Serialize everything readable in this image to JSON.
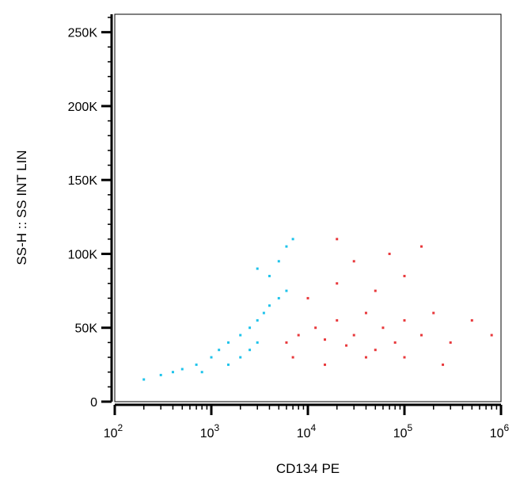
{
  "chart_data": {
    "type": "scatter",
    "title": "",
    "xlabel": "CD134 PE",
    "ylabel": "SS-H :: SS INT LIN",
    "x_scale": "log",
    "xlim": [
      100,
      1000000
    ],
    "ylim": [
      0,
      262144
    ],
    "x_ticks": [
      {
        "value": 100,
        "base": "10",
        "exp": "2"
      },
      {
        "value": 1000,
        "base": "10",
        "exp": "3"
      },
      {
        "value": 10000,
        "base": "10",
        "exp": "4"
      },
      {
        "value": 100000,
        "base": "10",
        "exp": "5"
      },
      {
        "value": 1000000,
        "base": "10",
        "exp": "6"
      }
    ],
    "y_ticks": [
      {
        "value": 0,
        "label": "0"
      },
      {
        "value": 50000,
        "label": "50K"
      },
      {
        "value": 100000,
        "label": "100K"
      },
      {
        "value": 150000,
        "label": "150K"
      },
      {
        "value": 200000,
        "label": "200K"
      },
      {
        "value": 250000,
        "label": "250K"
      }
    ],
    "grid": false,
    "legend": "none",
    "series": [
      {
        "color": "#e8383b",
        "points": [
          [
            6000,
            40000
          ],
          [
            8000,
            45000
          ],
          [
            12000,
            50000
          ],
          [
            15000,
            42000
          ],
          [
            20000,
            55000
          ],
          [
            25000,
            38000
          ],
          [
            30000,
            45000
          ],
          [
            40000,
            60000
          ],
          [
            50000,
            35000
          ],
          [
            60000,
            50000
          ],
          [
            80000,
            40000
          ],
          [
            100000,
            55000
          ],
          [
            150000,
            45000
          ],
          [
            200000,
            60000
          ],
          [
            300000,
            40000
          ],
          [
            10000,
            70000
          ],
          [
            20000,
            80000
          ],
          [
            50000,
            75000
          ],
          [
            100000,
            85000
          ],
          [
            7000,
            30000
          ],
          [
            15000,
            25000
          ],
          [
            40000,
            30000
          ],
          [
            100000,
            30000
          ],
          [
            250000,
            25000
          ],
          [
            500000,
            55000
          ],
          [
            800000,
            45000
          ],
          [
            30000,
            95000
          ],
          [
            70000,
            100000
          ],
          [
            150000,
            105000
          ],
          [
            20000,
            110000
          ]
        ]
      },
      {
        "color": "#1ec3eb",
        "points": [
          [
            200,
            15000
          ],
          [
            300,
            18000
          ],
          [
            400,
            20000
          ],
          [
            500,
            22000
          ],
          [
            700,
            25000
          ],
          [
            1000,
            30000
          ],
          [
            1200,
            35000
          ],
          [
            1500,
            40000
          ],
          [
            2000,
            45000
          ],
          [
            2500,
            50000
          ],
          [
            3000,
            55000
          ],
          [
            3500,
            60000
          ],
          [
            4000,
            65000
          ],
          [
            5000,
            70000
          ],
          [
            6000,
            75000
          ],
          [
            1500,
            25000
          ],
          [
            2000,
            30000
          ],
          [
            2500,
            35000
          ],
          [
            3000,
            40000
          ],
          [
            800,
            20000
          ],
          [
            4000,
            85000
          ],
          [
            5000,
            95000
          ],
          [
            6000,
            105000
          ],
          [
            7000,
            110000
          ],
          [
            3000,
            90000
          ]
        ]
      }
    ]
  }
}
